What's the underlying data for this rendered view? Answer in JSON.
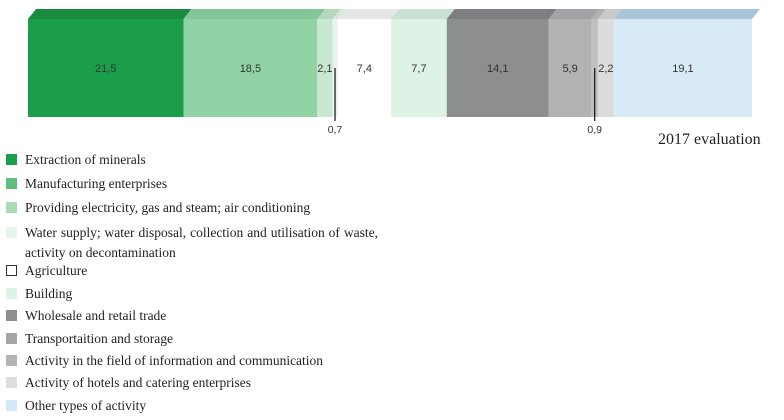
{
  "chart_data": {
    "type": "bar",
    "orientation": "horizontal-stacked",
    "title": "2017 evaluation",
    "categories": [
      "Extraction of minerals",
      "Manufacturing enterprises",
      "Providing electricity, gas and steam; air conditioning",
      "Water supply; water disposal, collection and utilisation of waste, activity on decontamination",
      "Agriculture",
      "Building",
      "Wholesale and retail trade",
      "Transportaition and storage",
      "Activity in the field of information and communication",
      "Activity of hotels and catering enterprises",
      "Other types of activity"
    ],
    "values": [
      21.5,
      18.5,
      2.1,
      0.7,
      7.4,
      7.7,
      14.1,
      5.9,
      0.9,
      2.2,
      19.1
    ],
    "value_labels": [
      "21,5",
      "18,5",
      "2,1",
      "0,7",
      "7,4",
      "7,7",
      "14,1",
      "5,9",
      "0,9",
      "2,2",
      "19,1"
    ],
    "colors": [
      "#1a9e4a",
      "#92d3a6",
      "#c9e8d2",
      "#e8f5ec",
      "#ffffff",
      "#dcf3e5",
      "#8d8e90",
      "#b2b2b4",
      "#c0c0c2",
      "#dcdcdd",
      "#d8ebf7"
    ],
    "top_colors": [
      "#1a8a3f",
      "#84c599",
      "#b4d8bf",
      "#d3e6da",
      "#e6e6e6",
      "#c9e2d3",
      "#7d7e80",
      "#a3a3a5",
      "#b0b0b2",
      "#c9c9ca",
      "#a9c4d8"
    ],
    "swatch_colors": [
      "#1a9e4a",
      "#5cbf7e",
      "#a9dbb7",
      "#e6f4ea",
      "#ffffff",
      "#dcf3e5",
      "#8d8e90",
      "#a6a6a8",
      "#b4b4b6",
      "#dedede",
      "#d3e9f6"
    ],
    "legend_placement": "bottom-left",
    "grid": false
  }
}
